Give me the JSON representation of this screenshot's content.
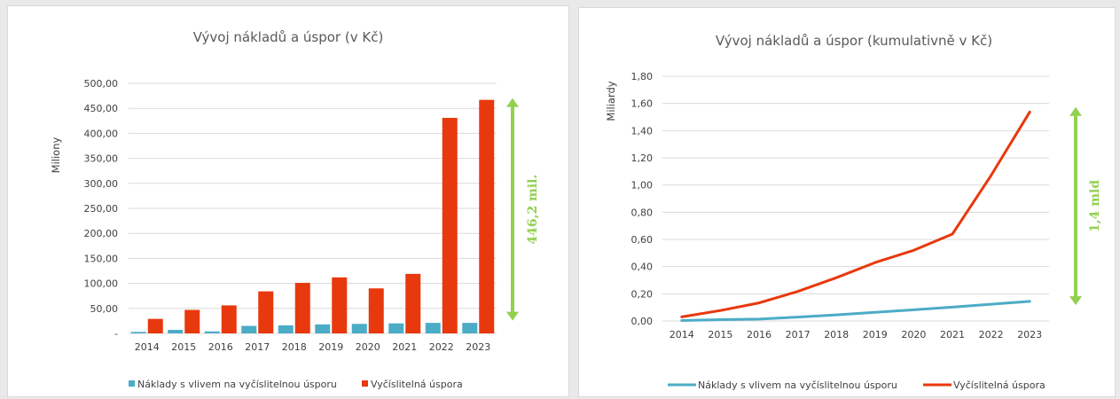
{
  "colors": {
    "costs": "#4bacc6",
    "savings": "#e8380d",
    "arrow": "#92d050",
    "grid": "#d9d9d9"
  },
  "chart_data": [
    {
      "type": "bar",
      "title": "Vývoj nákladů a úspor (v Kč)",
      "xlabel": "",
      "ylabel": "Miliony",
      "categories": [
        "2014",
        "2015",
        "2016",
        "2017",
        "2018",
        "2019",
        "2020",
        "2021",
        "2022",
        "2023"
      ],
      "ylim": [
        0,
        500
      ],
      "yticks": [
        "-",
        "50,00",
        "100,00",
        "150,00",
        "200,00",
        "250,00",
        "300,00",
        "350,00",
        "400,00",
        "450,00",
        "500,00"
      ],
      "grid": true,
      "legend_position": "bottom",
      "series": [
        {
          "name": "Náklady s vlivem na vyčíslitelnou úsporu",
          "values": [
            3,
            7,
            4,
            15,
            16,
            18,
            19,
            20,
            21,
            21
          ]
        },
        {
          "name": "Vyčíslitelná úspora",
          "values": [
            29,
            47,
            56,
            84,
            101,
            112,
            90,
            119,
            431,
            467
          ]
        }
      ],
      "annotation": {
        "text": "446,2 mil.",
        "from": 29,
        "to": 467
      }
    },
    {
      "type": "line",
      "title": "Vývoj nákladů a úspor (kumulativně v Kč)",
      "xlabel": "",
      "ylabel": "Miliardy",
      "categories": [
        "2014",
        "2015",
        "2016",
        "2017",
        "2018",
        "2019",
        "2020",
        "2021",
        "2022",
        "2023"
      ],
      "ylim": [
        0,
        1.8
      ],
      "yticks": [
        "0,00",
        "0,20",
        "0,40",
        "0,60",
        "0,80",
        "1,00",
        "1,20",
        "1,40",
        "1,60",
        "1,80"
      ],
      "grid": true,
      "legend_position": "bottom",
      "series": [
        {
          "name": "Náklady s vlivem na vyčíslitelnou úsporu",
          "values": [
            0.003,
            0.01,
            0.014,
            0.029,
            0.045,
            0.063,
            0.082,
            0.102,
            0.123,
            0.144
          ]
        },
        {
          "name": "Vyčíslitelná úspora",
          "values": [
            0.03,
            0.077,
            0.133,
            0.217,
            0.318,
            0.43,
            0.52,
            0.639,
            1.07,
            1.537
          ]
        }
      ],
      "annotation": {
        "text": "1,4 mld",
        "from": 0.13,
        "to": 1.56
      }
    }
  ]
}
